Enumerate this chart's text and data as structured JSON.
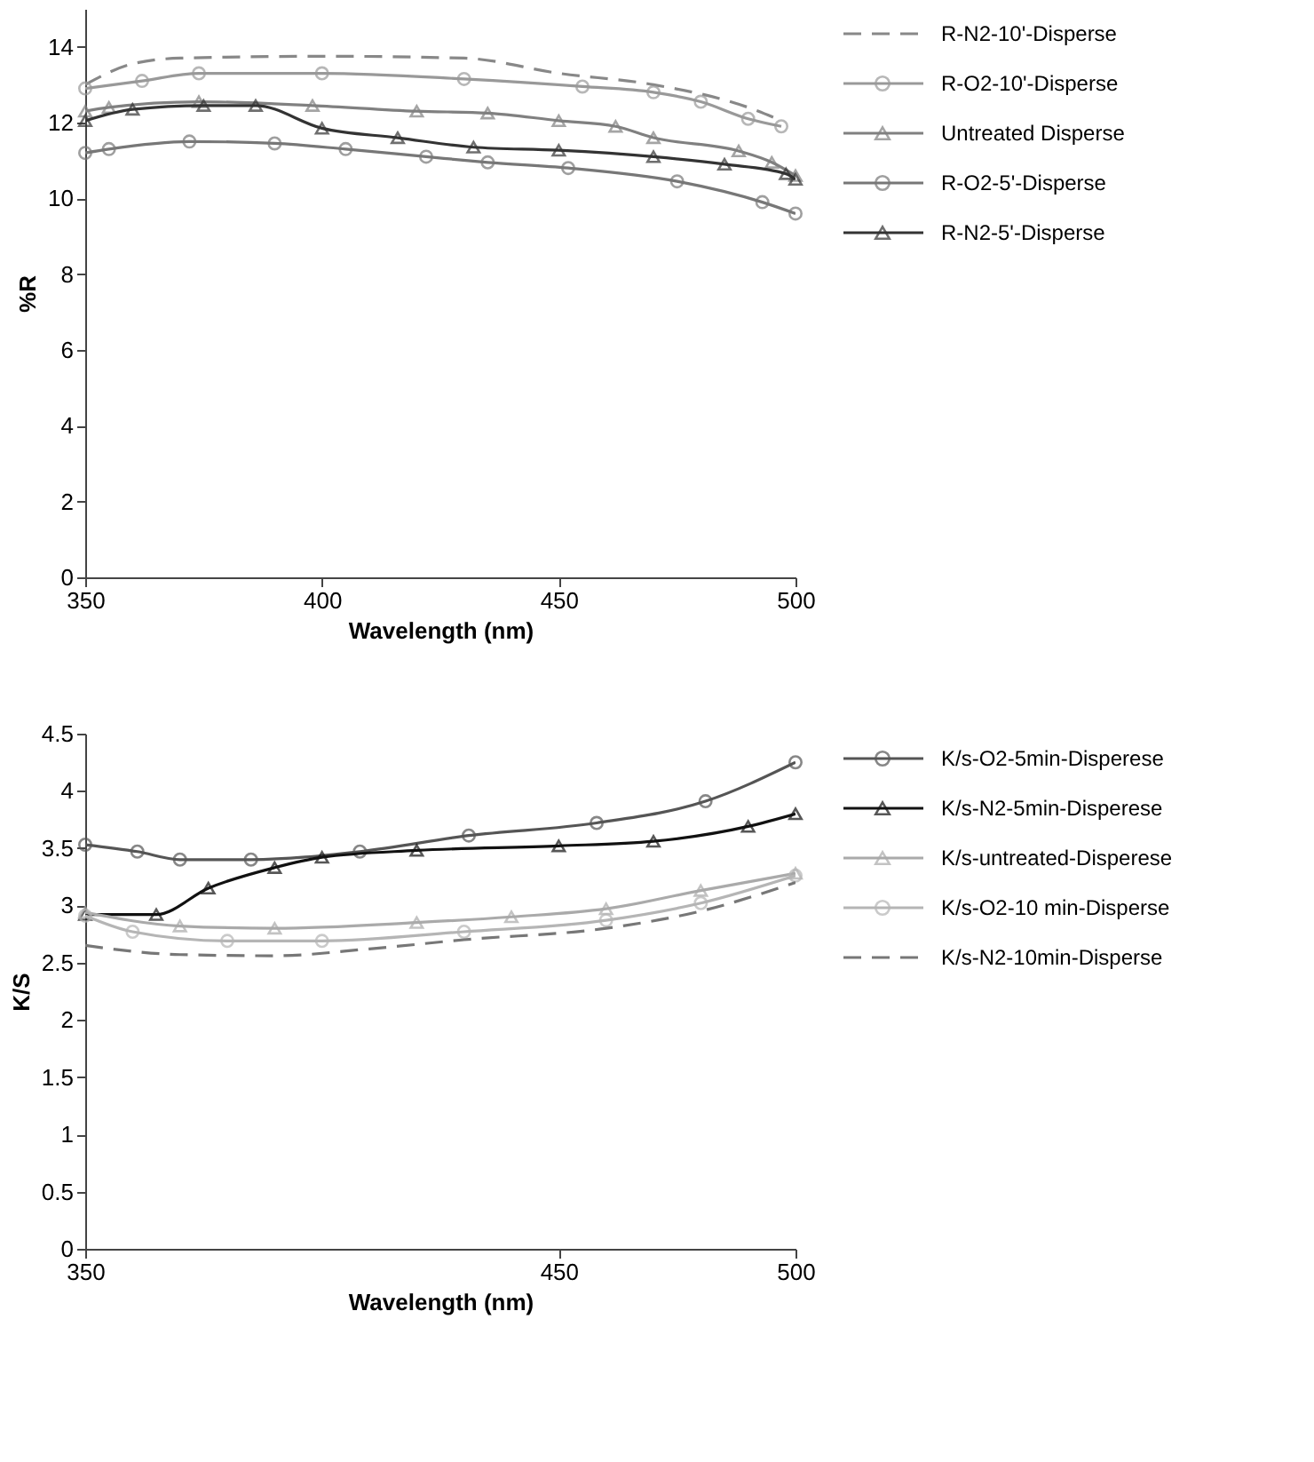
{
  "chart_data": [
    {
      "type": "line",
      "xlabel": "Wavelength (nm)",
      "ylabel": "%R",
      "xlim": [
        350,
        500
      ],
      "xticks": [
        350,
        400,
        450,
        500
      ],
      "ylim": [
        0,
        15
      ],
      "yticks": [
        0,
        2,
        4,
        6,
        8,
        10,
        12,
        14
      ],
      "grid": false,
      "legend": "right",
      "series": [
        {
          "name": "R-N2-10'-Disperse",
          "color": "#888888",
          "line_style": "dashed",
          "marker": "none",
          "x": [
            350,
            360,
            370,
            400,
            430,
            450,
            470,
            490,
            497
          ],
          "values": [
            13.0,
            13.55,
            13.7,
            13.75,
            13.7,
            13.3,
            13.0,
            12.4,
            12.05
          ]
        },
        {
          "name": "R-O2-10'-Disperse",
          "color": "#999999",
          "line_style": "solid",
          "marker": "circle",
          "x": [
            350,
            362,
            374,
            400,
            430,
            455,
            470,
            480,
            490,
            497
          ],
          "values": [
            12.9,
            13.1,
            13.3,
            13.3,
            13.15,
            12.95,
            12.8,
            12.55,
            12.1,
            11.9
          ]
        },
        {
          "name": "Untreated Disperse",
          "color": "#808080",
          "line_style": "solid",
          "marker": "triangle",
          "x": [
            350,
            355,
            374,
            398,
            420,
            435,
            450,
            462,
            470,
            488,
            495,
            500
          ],
          "values": [
            12.3,
            12.4,
            12.55,
            12.45,
            12.3,
            12.25,
            12.05,
            11.9,
            11.6,
            11.25,
            10.95,
            10.6
          ]
        },
        {
          "name": "R-O2-5'-Disperse",
          "color": "#777777",
          "line_style": "solid",
          "marker": "circle",
          "x": [
            350,
            355,
            372,
            390,
            405,
            422,
            435,
            452,
            475,
            493,
            500
          ],
          "values": [
            11.2,
            11.3,
            11.5,
            11.45,
            11.3,
            11.1,
            10.95,
            10.8,
            10.45,
            9.9,
            9.6
          ]
        },
        {
          "name": "R-N2-5'-Disperse",
          "color": "#333333",
          "line_style": "solid",
          "marker": "triangle",
          "x": [
            350,
            360,
            375,
            386,
            400,
            416,
            432,
            450,
            470,
            485,
            498,
            500
          ],
          "values": [
            12.05,
            12.35,
            12.45,
            12.45,
            11.85,
            11.6,
            11.35,
            11.27,
            11.1,
            10.9,
            10.65,
            10.5
          ]
        }
      ]
    },
    {
      "type": "line",
      "xlabel": "Wavelength (nm)",
      "ylabel": "K/S",
      "xlim": [
        350,
        500
      ],
      "xticks": [
        350,
        450,
        500
      ],
      "ylim": [
        0,
        4.5
      ],
      "yticks": [
        0,
        0.5,
        1,
        1.5,
        2,
        2.5,
        3,
        3.5,
        4,
        4.5
      ],
      "grid": false,
      "legend": "right",
      "series": [
        {
          "name": "K/s-O2-5min-Disperese",
          "color": "#555555",
          "line_style": "solid",
          "marker": "circle",
          "x": [
            350,
            361,
            370,
            385,
            408,
            431,
            458,
            481,
            500
          ],
          "values": [
            3.53,
            3.47,
            3.4,
            3.4,
            3.47,
            3.61,
            3.72,
            3.91,
            4.25
          ]
        },
        {
          "name": "K/s-N2-5min-Disperese",
          "color": "#111111",
          "line_style": "solid",
          "marker": "triangle",
          "x": [
            350,
            365,
            376,
            390,
            400,
            420,
            450,
            470,
            490,
            500
          ],
          "values": [
            2.92,
            2.92,
            3.15,
            3.33,
            3.42,
            3.48,
            3.52,
            3.56,
            3.69,
            3.8
          ]
        },
        {
          "name": "K/s-untreated-Disperese",
          "color": "#aaaaaa",
          "line_style": "solid",
          "marker": "triangle",
          "x": [
            350,
            370,
            390,
            420,
            440,
            460,
            480,
            500
          ],
          "values": [
            2.94,
            2.82,
            2.8,
            2.85,
            2.9,
            2.97,
            3.13,
            3.28
          ]
        },
        {
          "name": "K/s-O2-10 min-Disperse",
          "color": "#b5b5b5",
          "line_style": "solid",
          "marker": "circle",
          "x": [
            350,
            360,
            380,
            400,
            430,
            460,
            480,
            500
          ],
          "values": [
            2.91,
            2.77,
            2.69,
            2.69,
            2.77,
            2.87,
            3.02,
            3.26
          ]
        },
        {
          "name": "K/s-N2-10min-Disperse",
          "color": "#777777",
          "line_style": "dashed",
          "marker": "none",
          "x": [
            350,
            370,
            390,
            410,
            430,
            460,
            480,
            500
          ],
          "values": [
            2.65,
            2.57,
            2.56,
            2.62,
            2.7,
            2.8,
            2.95,
            3.2
          ]
        }
      ]
    }
  ]
}
